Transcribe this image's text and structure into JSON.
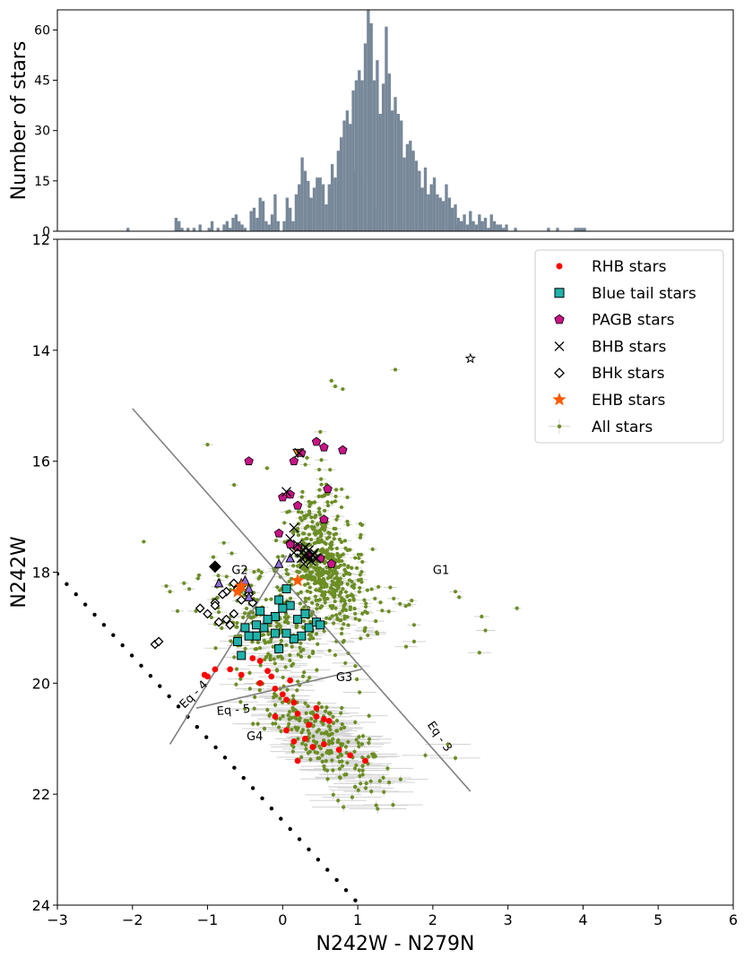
{
  "chart_data": [
    {
      "type": "bar",
      "panel": "histogram",
      "ylabel": "Number of stars",
      "xlim": [
        -3,
        6
      ],
      "ylim": [
        0,
        66
      ],
      "yticks": [
        0,
        15,
        30,
        45,
        60
      ],
      "color": "#778899",
      "bin_width": 0.04,
      "bin_start": -2.08,
      "counts": [
        1,
        0,
        0,
        0,
        0,
        0,
        0,
        0,
        0,
        0,
        0,
        0,
        0,
        0,
        0,
        0,
        4,
        3,
        1,
        0,
        1,
        0,
        1,
        0,
        2,
        0,
        0,
        1,
        3,
        0,
        1,
        0,
        2,
        3,
        1,
        4,
        5,
        3,
        2,
        1,
        0,
        6,
        7,
        4,
        10,
        9,
        3,
        2,
        5,
        11,
        3,
        0,
        3,
        10,
        7,
        3,
        11,
        14,
        22,
        18,
        15,
        10,
        13,
        16,
        16,
        14,
        8,
        14,
        20,
        16,
        24,
        28,
        33,
        36,
        32,
        42,
        45,
        48,
        45,
        56,
        66,
        62,
        45,
        51,
        35,
        44,
        61,
        47,
        36,
        40,
        35,
        33,
        22,
        26,
        27,
        24,
        21,
        18,
        13,
        19,
        11,
        14,
        16,
        11,
        10,
        9,
        14,
        10,
        7,
        8,
        4,
        3,
        5,
        2,
        6,
        3,
        2,
        5,
        3,
        4,
        1,
        5,
        3,
        2,
        2,
        1,
        2,
        0,
        0,
        1,
        0,
        0,
        0,
        0,
        0,
        0,
        0,
        0,
        0,
        0,
        1,
        0,
        0,
        1,
        0,
        0,
        0,
        0,
        0,
        1,
        1,
        1,
        1
      ],
      "spikes": [
        {
          "x": 0.96,
          "height": 18
        },
        {
          "x": 1.06,
          "height": 16
        },
        {
          "x": 1.23,
          "height": 7
        },
        {
          "x": 2.32,
          "height": 2
        },
        {
          "x": 2.62,
          "height": 1
        }
      ]
    },
    {
      "type": "scatter",
      "panel": "cmd",
      "xlabel": "N242W - N279N",
      "ylabel": "N242W",
      "xlim": [
        -3,
        6
      ],
      "ylim": [
        24,
        12
      ],
      "xticks": [
        -3,
        -2,
        -1,
        0,
        1,
        2,
        3,
        4,
        5,
        6
      ],
      "yticks": [
        12,
        14,
        16,
        18,
        20,
        22,
        24
      ],
      "legend": {
        "position": "top-right",
        "entries": [
          {
            "label": "RHB stars",
            "marker": "circle",
            "color": "#ff0000"
          },
          {
            "label": "Blue tail stars",
            "marker": "square",
            "color": "#20b2aa"
          },
          {
            "label": "PAGB stars",
            "marker": "pentagon",
            "color": "#c71585"
          },
          {
            "label": "BHB stars",
            "marker": "x",
            "color": "#000000"
          },
          {
            "label": "BHk stars",
            "marker": "diamond",
            "color": "#ffffff"
          },
          {
            "label": "EHB stars",
            "marker": "star",
            "color": "#ff5a00"
          },
          {
            "label": "All stars",
            "marker": "errorbar-dot",
            "color": "#6b8e23"
          }
        ]
      },
      "lines": [
        {
          "label": "Eq - 3",
          "x": [
            -2.0,
            2.5
          ],
          "y": [
            15.05,
            21.95
          ]
        },
        {
          "label": "Eq - 4",
          "x": [
            -1.5,
            0.05
          ],
          "y": [
            21.1,
            17.7
          ]
        },
        {
          "label": "Eq - 5",
          "x": [
            -1.15,
            1.05
          ],
          "y": [
            20.45,
            19.75
          ]
        }
      ],
      "region_labels": [
        {
          "text": "G1",
          "x": 2.0,
          "y": 17.95
        },
        {
          "text": "G2",
          "x": -0.68,
          "y": 17.95
        },
        {
          "text": "G3",
          "x": 0.71,
          "y": 19.88
        },
        {
          "text": "G4",
          "x": -0.48,
          "y": 20.95
        }
      ],
      "line_labels": [
        {
          "text": "Eq - 4",
          "x": -1.15,
          "y": 20.25,
          "angle": -45
        },
        {
          "text": "Eq - 5",
          "x": -0.65,
          "y": 20.55,
          "angle": -5
        },
        {
          "text": "Eq - 3",
          "x": 2.05,
          "y": 21.0,
          "angle": 55
        }
      ],
      "isochrone": {
        "x_start": -3.0,
        "y_start": 18.03,
        "slope": 1.483,
        "step": 0.124,
        "count": 42
      },
      "rhb": [
        [
          -1.04,
          19.85
        ],
        [
          -1.0,
          19.88
        ],
        [
          -0.9,
          19.75
        ],
        [
          -0.7,
          19.75
        ],
        [
          -0.55,
          19.85
        ],
        [
          -0.4,
          19.55
        ],
        [
          -0.3,
          19.6
        ],
        [
          -0.2,
          19.78
        ],
        [
          -0.15,
          19.88
        ],
        [
          -0.3,
          20.0
        ],
        [
          -0.1,
          20.1
        ],
        [
          0.05,
          20.3
        ],
        [
          0.15,
          20.35
        ],
        [
          0.2,
          20.55
        ],
        [
          0.35,
          20.75
        ],
        [
          0.45,
          20.6
        ],
        [
          0.55,
          20.65
        ],
        [
          0.62,
          20.68
        ],
        [
          0.3,
          21.0
        ],
        [
          0.05,
          20.85
        ],
        [
          0.15,
          21.05
        ],
        [
          0.4,
          21.15
        ],
        [
          0.55,
          21.1
        ],
        [
          0.75,
          21.2
        ],
        [
          0.9,
          21.3
        ],
        [
          1.1,
          21.4
        ],
        [
          0.2,
          21.4
        ],
        [
          -0.1,
          20.6
        ],
        [
          0.0,
          20.2
        ],
        [
          0.1,
          19.95
        ],
        [
          0.45,
          20.45
        ]
      ],
      "blue_tail": [
        [
          -0.25,
          19.0
        ],
        [
          -0.05,
          18.5
        ],
        [
          -0.1,
          18.8
        ],
        [
          0.05,
          18.3
        ],
        [
          0.1,
          18.6
        ],
        [
          0.2,
          18.85
        ],
        [
          0.35,
          19.0
        ],
        [
          0.3,
          18.75
        ],
        [
          0.45,
          18.9
        ],
        [
          0.5,
          18.95
        ],
        [
          0.25,
          19.15
        ],
        [
          0.15,
          19.2
        ],
        [
          0.05,
          19.1
        ],
        [
          -0.1,
          19.1
        ],
        [
          -0.2,
          18.85
        ],
        [
          -0.35,
          19.15
        ],
        [
          -0.45,
          19.15
        ],
        [
          -0.6,
          19.25
        ],
        [
          -0.5,
          19.0
        ],
        [
          -0.35,
          18.95
        ],
        [
          0.0,
          18.65
        ],
        [
          -0.05,
          19.38
        ],
        [
          -0.3,
          18.7
        ],
        [
          -0.55,
          19.5
        ]
      ],
      "pagb": [
        [
          -0.45,
          16.0
        ],
        [
          -0.05,
          17.3
        ],
        [
          0.0,
          16.65
        ],
        [
          0.1,
          16.6
        ],
        [
          0.2,
          16.8
        ],
        [
          0.45,
          15.65
        ],
        [
          0.55,
          15.75
        ],
        [
          0.6,
          16.5
        ],
        [
          0.55,
          17.05
        ],
        [
          0.8,
          15.8
        ],
        [
          0.25,
          15.85
        ],
        [
          0.15,
          16.0
        ],
        [
          0.1,
          17.5
        ],
        [
          0.2,
          17.55
        ],
        [
          0.35,
          17.7
        ],
        [
          0.5,
          17.75
        ],
        [
          0.65,
          17.85
        ]
      ],
      "bhb": [
        [
          0.05,
          16.55
        ],
        [
          0.15,
          17.2
        ],
        [
          0.2,
          17.5
        ],
        [
          0.25,
          17.65
        ],
        [
          0.3,
          17.72
        ],
        [
          0.35,
          17.6
        ],
        [
          0.38,
          17.8
        ],
        [
          0.4,
          17.7
        ],
        [
          0.42,
          17.65
        ],
        [
          0.28,
          17.85
        ],
        [
          0.3,
          17.55
        ],
        [
          0.45,
          17.75
        ],
        [
          0.15,
          17.65
        ],
        [
          0.1,
          17.4
        ],
        [
          0.25,
          17.75
        ],
        [
          0.22,
          15.85
        ],
        [
          0.33,
          17.68
        ],
        [
          0.36,
          17.74
        ]
      ],
      "bhk": [
        [
          -0.9,
          17.9
        ],
        [
          -1.1,
          18.65
        ],
        [
          -1.0,
          18.75
        ],
        [
          -0.9,
          18.55
        ],
        [
          -0.75,
          18.85
        ],
        [
          -0.65,
          18.75
        ],
        [
          -0.55,
          18.5
        ],
        [
          -0.65,
          18.2
        ],
        [
          -0.6,
          18.3
        ],
        [
          -0.75,
          18.35
        ],
        [
          -0.85,
          18.9
        ],
        [
          -0.7,
          18.95
        ],
        [
          -0.9,
          18.6
        ],
        [
          -0.8,
          18.4
        ],
        [
          -1.7,
          19.3
        ],
        [
          -1.65,
          19.25
        ],
        [
          -0.45,
          18.4
        ],
        [
          -0.4,
          18.55
        ]
      ],
      "ehb": [
        [
          -0.6,
          18.35
        ],
        [
          0.2,
          18.15
        ],
        [
          -0.55,
          18.25
        ]
      ],
      "outlier_star": [
        2.5,
        14.15
      ],
      "triangles_purple": [
        [
          -0.55,
          18.2
        ],
        [
          -0.45,
          18.3
        ],
        [
          -0.5,
          18.15
        ],
        [
          -0.85,
          18.2
        ],
        [
          -0.05,
          17.85
        ],
        [
          0.1,
          17.75
        ],
        [
          -0.45,
          18.45
        ]
      ],
      "triangles_orange": [
        [
          0.2,
          15.85
        ]
      ],
      "all_stars_seed": 7
    }
  ]
}
